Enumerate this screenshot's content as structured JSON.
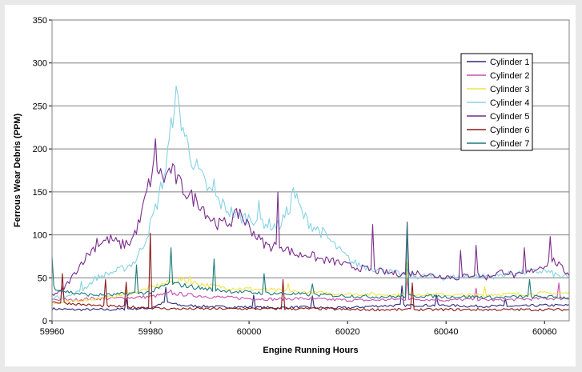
{
  "chart_data": {
    "type": "line",
    "title": "",
    "xlabel": "Engine Running Hours",
    "ylabel": "Ferrous Wear Debris (PPM)",
    "xlim": [
      59960,
      60065
    ],
    "ylim": [
      0,
      350
    ],
    "x_ticks": [
      59960,
      59980,
      60000,
      60020,
      60040,
      60060
    ],
    "y_ticks": [
      0,
      50,
      100,
      150,
      200,
      250,
      300,
      350
    ],
    "grid": "horizontal",
    "legend_position": "top-right",
    "series": [
      {
        "name": "Cylinder 1",
        "color": "#2e2a7a",
        "points": [
          [
            59960,
            14
          ],
          [
            59964,
            13
          ],
          [
            59968,
            13
          ],
          [
            59972,
            13
          ],
          [
            59976,
            14
          ],
          [
            59980,
            15
          ],
          [
            59983,
            22
          ],
          [
            59986,
            18
          ],
          [
            59990,
            17
          ],
          [
            59995,
            16
          ],
          [
            60000,
            16
          ],
          [
            60005,
            15
          ],
          [
            60010,
            16
          ],
          [
            60015,
            15
          ],
          [
            60020,
            15
          ],
          [
            60025,
            17
          ],
          [
            60030,
            18
          ],
          [
            60035,
            18
          ],
          [
            60040,
            18
          ],
          [
            60045,
            17
          ],
          [
            60050,
            17
          ],
          [
            60055,
            17
          ],
          [
            60060,
            18
          ],
          [
            60065,
            18
          ]
        ]
      },
      {
        "name": "Cylinder 2",
        "color": "#c94fb0",
        "points": [
          [
            59960,
            25
          ],
          [
            59964,
            24
          ],
          [
            59968,
            26
          ],
          [
            59972,
            26
          ],
          [
            59976,
            27
          ],
          [
            59980,
            28
          ],
          [
            59984,
            32
          ],
          [
            59988,
            30
          ],
          [
            59992,
            28
          ],
          [
            59996,
            27
          ],
          [
            60000,
            26
          ],
          [
            60005,
            25
          ],
          [
            60010,
            26
          ],
          [
            60015,
            25
          ],
          [
            60020,
            24
          ],
          [
            60025,
            24
          ],
          [
            60030,
            25
          ],
          [
            60035,
            25
          ],
          [
            60040,
            24
          ],
          [
            60045,
            25
          ],
          [
            60050,
            24
          ],
          [
            60055,
            25
          ],
          [
            60060,
            26
          ],
          [
            60065,
            26
          ]
        ]
      },
      {
        "name": "Cylinder 3",
        "color": "#f2e24a",
        "points": [
          [
            59960,
            20
          ],
          [
            59963,
            22
          ],
          [
            59966,
            24
          ],
          [
            59970,
            26
          ],
          [
            59974,
            30
          ],
          [
            59978,
            35
          ],
          [
            59982,
            42
          ],
          [
            59986,
            48
          ],
          [
            59989,
            44
          ],
          [
            59993,
            40
          ],
          [
            59997,
            38
          ],
          [
            60000,
            37
          ],
          [
            60004,
            36
          ],
          [
            60008,
            34
          ],
          [
            60012,
            33
          ],
          [
            60016,
            32
          ],
          [
            60020,
            31
          ],
          [
            60025,
            31
          ],
          [
            60030,
            30
          ],
          [
            60035,
            31
          ],
          [
            60040,
            30
          ],
          [
            60045,
            30
          ],
          [
            60050,
            31
          ],
          [
            60055,
            31
          ],
          [
            60060,
            32
          ],
          [
            60065,
            32
          ]
        ]
      },
      {
        "name": "Cylinder 4",
        "color": "#86d2e3",
        "points": [
          [
            59960,
            27
          ],
          [
            59963,
            28
          ],
          [
            59966,
            35
          ],
          [
            59969,
            50
          ],
          [
            59972,
            56
          ],
          [
            59975,
            62
          ],
          [
            59977,
            70
          ],
          [
            59979,
            95
          ],
          [
            59981,
            130
          ],
          [
            59983,
            175
          ],
          [
            59984,
            215
          ],
          [
            59985,
            265
          ],
          [
            59986,
            240
          ],
          [
            59987,
            215
          ],
          [
            59988,
            195
          ],
          [
            59990,
            170
          ],
          [
            59992,
            150
          ],
          [
            59994,
            138
          ],
          [
            59996,
            128
          ],
          [
            59998,
            120
          ],
          [
            60000,
            120
          ],
          [
            60002,
            118
          ],
          [
            60004,
            112
          ],
          [
            60006,
            110
          ],
          [
            60008,
            128
          ],
          [
            60009,
            150
          ],
          [
            60011,
            122
          ],
          [
            60013,
            110
          ],
          [
            60015,
            102
          ],
          [
            60017,
            90
          ],
          [
            60019,
            78
          ],
          [
            60021,
            68
          ],
          [
            60023,
            64
          ],
          [
            60026,
            60
          ],
          [
            60030,
            55
          ],
          [
            60033,
            52
          ],
          [
            60036,
            52
          ],
          [
            60040,
            50
          ],
          [
            60045,
            52
          ],
          [
            60050,
            52
          ],
          [
            60055,
            56
          ],
          [
            60060,
            58
          ],
          [
            60063,
            52
          ],
          [
            60065,
            50
          ]
        ]
      },
      {
        "name": "Cylinder 5",
        "color": "#7a2d8c",
        "points": [
          [
            59960,
            30
          ],
          [
            59962,
            35
          ],
          [
            59964,
            50
          ],
          [
            59966,
            68
          ],
          [
            59968,
            82
          ],
          [
            59970,
            92
          ],
          [
            59972,
            95
          ],
          [
            59974,
            88
          ],
          [
            59976,
            92
          ],
          [
            59978,
            118
          ],
          [
            59979,
            145
          ],
          [
            59980,
            165
          ],
          [
            59981,
            185
          ],
          [
            59982,
            170
          ],
          [
            59983,
            165
          ],
          [
            59984,
            178
          ],
          [
            59986,
            158
          ],
          [
            59988,
            145
          ],
          [
            59990,
            138
          ],
          [
            59992,
            120
          ],
          [
            59994,
            112
          ],
          [
            59996,
            115
          ],
          [
            59998,
            125
          ],
          [
            60000,
            110
          ],
          [
            60002,
            95
          ],
          [
            60004,
            86
          ],
          [
            60006,
            90
          ],
          [
            60008,
            82
          ],
          [
            60010,
            76
          ],
          [
            60012,
            78
          ],
          [
            60014,
            72
          ],
          [
            60016,
            70
          ],
          [
            60018,
            68
          ],
          [
            60020,
            64
          ],
          [
            60022,
            62
          ],
          [
            60024,
            60
          ],
          [
            60026,
            58
          ],
          [
            60028,
            56
          ],
          [
            60030,
            55
          ],
          [
            60032,
            55
          ],
          [
            60034,
            56
          ],
          [
            60036,
            54
          ],
          [
            60038,
            52
          ],
          [
            60040,
            52
          ],
          [
            60042,
            50
          ],
          [
            60044,
            52
          ],
          [
            60046,
            55
          ],
          [
            60048,
            50
          ],
          [
            60050,
            55
          ],
          [
            60052,
            58
          ],
          [
            60054,
            52
          ],
          [
            60056,
            54
          ],
          [
            60058,
            60
          ],
          [
            60060,
            65
          ],
          [
            60062,
            70
          ],
          [
            60064,
            58
          ],
          [
            60065,
            55
          ]
        ]
      },
      {
        "name": "Cylinder 6",
        "color": "#8b1a1a",
        "points": [
          [
            59960,
            22
          ],
          [
            59964,
            20
          ],
          [
            59968,
            18
          ],
          [
            59972,
            17
          ],
          [
            59976,
            16
          ],
          [
            59980,
            15
          ],
          [
            59984,
            14
          ],
          [
            59990,
            14
          ],
          [
            59995,
            14
          ],
          [
            60000,
            14
          ],
          [
            60005,
            14
          ],
          [
            60010,
            14
          ],
          [
            60015,
            14
          ],
          [
            60020,
            13
          ],
          [
            60025,
            13
          ],
          [
            60030,
            13
          ],
          [
            60035,
            13
          ],
          [
            60040,
            13
          ],
          [
            60045,
            13
          ],
          [
            60050,
            13
          ],
          [
            60055,
            13
          ],
          [
            60060,
            13
          ],
          [
            60065,
            13
          ]
        ]
      },
      {
        "name": "Cylinder 7",
        "color": "#1e7a7a",
        "points": [
          [
            59960,
            40
          ],
          [
            59962,
            35
          ],
          [
            59965,
            32
          ],
          [
            59968,
            30
          ],
          [
            59972,
            30
          ],
          [
            59976,
            32
          ],
          [
            59980,
            33
          ],
          [
            59984,
            44
          ],
          [
            59986,
            42
          ],
          [
            59990,
            38
          ],
          [
            59995,
            35
          ],
          [
            60000,
            33
          ],
          [
            60005,
            32
          ],
          [
            60010,
            31
          ],
          [
            60015,
            30
          ],
          [
            60020,
            29
          ],
          [
            60025,
            28
          ],
          [
            60030,
            28
          ],
          [
            60035,
            29
          ],
          [
            60040,
            28
          ],
          [
            60045,
            28
          ],
          [
            60050,
            27
          ],
          [
            60055,
            28
          ],
          [
            60060,
            28
          ],
          [
            60065,
            27
          ]
        ]
      }
    ],
    "spikes": [
      {
        "series": "Cylinder 1",
        "x": [
          59975,
          59983,
          60001,
          60013,
          60031,
          60038,
          60052
        ],
        "y": [
          26,
          39,
          30,
          29,
          41,
          30,
          26
        ]
      },
      {
        "series": "Cylinder 2",
        "x": [
          59962,
          59984,
          60032,
          60046,
          60063
        ],
        "y": [
          40,
          36,
          50,
          38,
          44
        ]
      },
      {
        "series": "Cylinder 3",
        "x": [
          59975,
          59988,
          60008,
          60032,
          60048
        ],
        "y": [
          38,
          52,
          43,
          68,
          40
        ]
      },
      {
        "series": "Cylinder 4",
        "x": [
          59966,
          59993,
          60002,
          60009,
          60032
        ],
        "y": [
          46,
          165,
          140,
          155,
          60
        ]
      },
      {
        "series": "Cylinder 5",
        "x": [
          59969,
          59981,
          59998,
          60006,
          60025,
          60032,
          60043,
          60046,
          60056,
          60061
        ],
        "y": [
          96,
          212,
          130,
          150,
          112,
          115,
          82,
          88,
          85,
          98
        ]
      },
      {
        "series": "Cylinder 6",
        "x": [
          59962,
          59971,
          59975,
          59980,
          60007,
          60033
        ],
        "y": [
          55,
          48,
          45,
          102,
          48,
          44
        ]
      },
      {
        "series": "Cylinder 7",
        "x": [
          59960,
          59977,
          59984,
          59993,
          60003,
          60013,
          60032,
          60057
        ],
        "y": [
          75,
          65,
          85,
          72,
          55,
          43,
          112,
          48
        ]
      }
    ]
  }
}
